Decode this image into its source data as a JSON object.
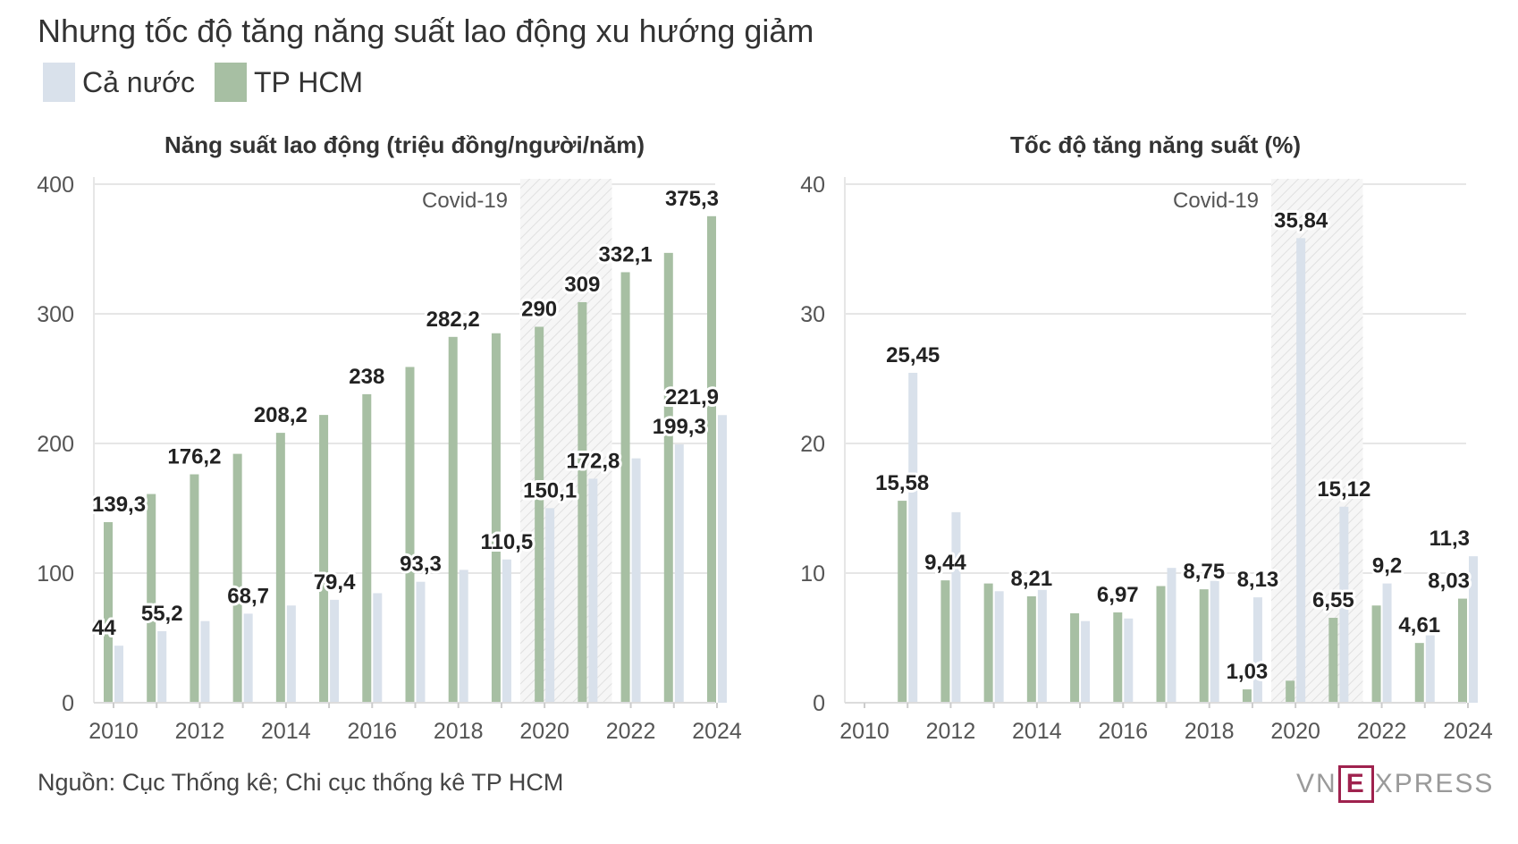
{
  "subtitle": "Nhưng tốc độ tăng năng suất lao động xu hướng giảm",
  "legend": [
    {
      "label": "Cả nước",
      "color": "#d9e1eb"
    },
    {
      "label": "TP HCM",
      "color": "#a7bfa3"
    }
  ],
  "source": "Nguồn: Cục Thống kê; Chi cục thống kê TP HCM",
  "logo": {
    "left": "VN",
    "mark": "E",
    "right": "XPRESS"
  },
  "colors": {
    "national": "#d9e1eb",
    "hcm": "#a7bfa3",
    "covid_band": "#f2f2f2",
    "grid": "#e6e6e6",
    "label": "#222222"
  },
  "chart_data": [
    {
      "type": "bar",
      "title": "Năng suất lao động (triệu đồng/người/năm)",
      "x": [
        2010,
        2011,
        2012,
        2013,
        2014,
        2015,
        2016,
        2017,
        2018,
        2019,
        2020,
        2021,
        2022,
        2023,
        2024
      ],
      "x_ticks": [
        "2010",
        "2012",
        "2014",
        "2016",
        "2018",
        "2020",
        "2022",
        "2024"
      ],
      "ylim": [
        0,
        400
      ],
      "y_ticks": [
        "0",
        "100",
        "200",
        "300",
        "400"
      ],
      "grid": true,
      "annotation": {
        "label": "Covid-19",
        "x_range": [
          2020,
          2021
        ]
      },
      "series": [
        {
          "name": "TP HCM",
          "values": [
            139.3,
            161,
            176.2,
            192,
            208.2,
            222,
            238,
            259,
            282.2,
            285,
            290,
            309,
            332.1,
            347,
            375.3
          ]
        },
        {
          "name": "Cả nước",
          "values": [
            44,
            55.2,
            63,
            68.7,
            75,
            79.4,
            84.5,
            93.3,
            102.5,
            110.5,
            150.1,
            172.8,
            188.5,
            199.3,
            221.9
          ]
        }
      ],
      "data_labels": [
        {
          "series": 0,
          "index": 0,
          "text": "139,3"
        },
        {
          "series": 1,
          "index": 0,
          "text": "44"
        },
        {
          "series": 1,
          "index": 1,
          "text": "55,2"
        },
        {
          "series": 0,
          "index": 2,
          "text": "176,2"
        },
        {
          "series": 1,
          "index": 3,
          "text": "68,7"
        },
        {
          "series": 0,
          "index": 4,
          "text": "208,2"
        },
        {
          "series": 1,
          "index": 5,
          "text": "79,4"
        },
        {
          "series": 0,
          "index": 6,
          "text": "238"
        },
        {
          "series": 1,
          "index": 7,
          "text": "93,3"
        },
        {
          "series": 0,
          "index": 8,
          "text": "282,2"
        },
        {
          "series": 1,
          "index": 9,
          "text": "110,5"
        },
        {
          "series": 0,
          "index": 10,
          "text": "290"
        },
        {
          "series": 1,
          "index": 10,
          "text": "150,1"
        },
        {
          "series": 0,
          "index": 11,
          "text": "309"
        },
        {
          "series": 1,
          "index": 11,
          "text": "172,8"
        },
        {
          "series": 0,
          "index": 12,
          "text": "332,1"
        },
        {
          "series": 1,
          "index": 13,
          "text": "199,3"
        },
        {
          "series": 0,
          "index": 14,
          "text": "375,3"
        },
        {
          "series": 1,
          "index": 14,
          "text": "221,9"
        }
      ]
    },
    {
      "type": "bar",
      "title": "Tốc độ tăng năng suất (%)",
      "x": [
        2010,
        2011,
        2012,
        2013,
        2014,
        2015,
        2016,
        2017,
        2018,
        2019,
        2020,
        2021,
        2022,
        2023,
        2024
      ],
      "x_ticks": [
        "2010",
        "2012",
        "2014",
        "2016",
        "2018",
        "2020",
        "2022",
        "2024"
      ],
      "ylim": [
        0,
        40
      ],
      "y_ticks": [
        "0",
        "10",
        "20",
        "30",
        "40"
      ],
      "grid": true,
      "annotation": {
        "label": "Covid-19",
        "x_range": [
          2020,
          2021
        ]
      },
      "series": [
        {
          "name": "TP HCM",
          "values": [
            null,
            15.58,
            9.44,
            9.2,
            8.21,
            6.9,
            6.97,
            9.0,
            8.75,
            1.03,
            1.7,
            6.55,
            7.5,
            4.61,
            8.03
          ]
        },
        {
          "name": "Cả nước",
          "values": [
            null,
            25.45,
            14.7,
            8.6,
            8.7,
            6.3,
            6.5,
            10.4,
            9.4,
            8.13,
            35.84,
            15.12,
            9.2,
            5.2,
            11.3
          ]
        }
      ],
      "data_labels": [
        {
          "series": 1,
          "index": 1,
          "text": "25,45"
        },
        {
          "series": 0,
          "index": 1,
          "text": "15,58"
        },
        {
          "series": 0,
          "index": 2,
          "text": "9,44"
        },
        {
          "series": 0,
          "index": 4,
          "text": "8,21"
        },
        {
          "series": 0,
          "index": 6,
          "text": "6,97"
        },
        {
          "series": 0,
          "index": 8,
          "text": "8,75"
        },
        {
          "series": 0,
          "index": 9,
          "text": "1,03"
        },
        {
          "series": 1,
          "index": 9,
          "text": "8,13"
        },
        {
          "series": 1,
          "index": 10,
          "text": "35,84"
        },
        {
          "series": 0,
          "index": 11,
          "text": "6,55"
        },
        {
          "series": 1,
          "index": 11,
          "text": "15,12"
        },
        {
          "series": 1,
          "index": 12,
          "text": "9,2"
        },
        {
          "series": 0,
          "index": 13,
          "text": "4,61"
        },
        {
          "series": 0,
          "index": 14,
          "text": "8,03"
        },
        {
          "series": 1,
          "index": 14,
          "text": "11,3"
        }
      ]
    }
  ]
}
